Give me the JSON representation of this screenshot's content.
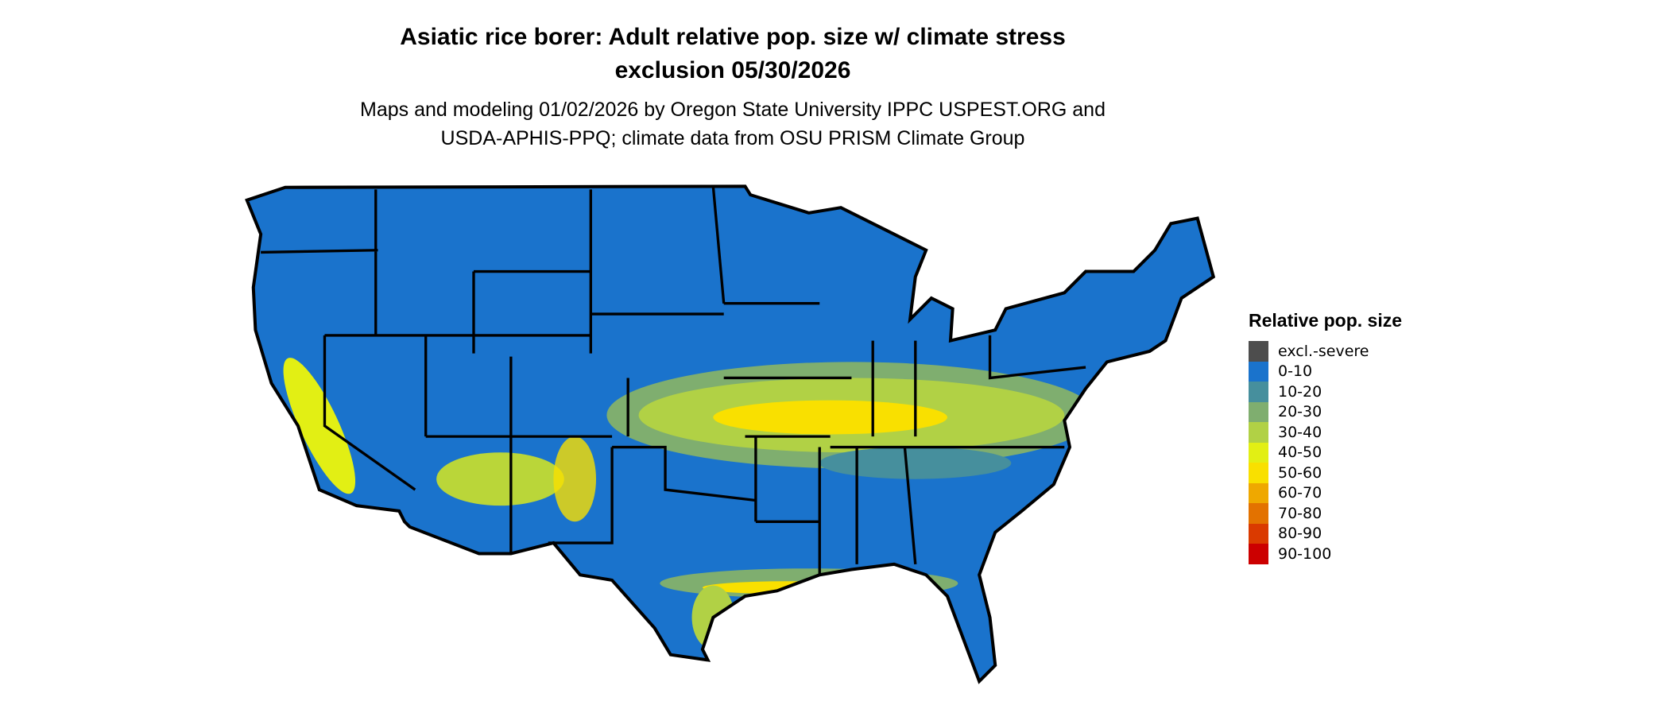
{
  "title": {
    "line1": "Asiatic rice borer: Adult relative pop. size w/ climate stress",
    "line2": "exclusion 05/30/2026"
  },
  "subtitle": {
    "line1": "Maps and modeling 01/02/2026 by Oregon State University IPPC USPEST.ORG and",
    "line2": "USDA-APHIS-PPQ; climate data from OSU PRISM Climate Group"
  },
  "legend": {
    "title": "Relative pop. size",
    "items": [
      {
        "label": "excl.-severe",
        "color": "#4d4d4d"
      },
      {
        "label": "0-10",
        "color": "#1a73cc"
      },
      {
        "label": "10-20",
        "color": "#468f9d"
      },
      {
        "label": "20-30",
        "color": "#7fae6f"
      },
      {
        "label": "30-40",
        "color": "#b1d145"
      },
      {
        "label": "40-50",
        "color": "#e2ef14"
      },
      {
        "label": "50-60",
        "color": "#f9e000"
      },
      {
        "label": "60-70",
        "color": "#efa800"
      },
      {
        "label": "70-80",
        "color": "#e37200"
      },
      {
        "label": "80-90",
        "color": "#da3a00"
      },
      {
        "label": "90-100",
        "color": "#cc0000"
      }
    ]
  },
  "map": {
    "region": "Contiguous United States",
    "background_class_color": "#1a73cc",
    "boundary_color": "#000000"
  }
}
